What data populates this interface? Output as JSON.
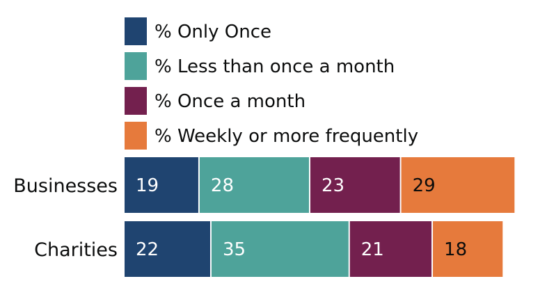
{
  "chart_data": {
    "type": "bar",
    "orientation": "horizontal",
    "stacked": true,
    "categories": [
      "Businesses",
      "Charities"
    ],
    "series": [
      {
        "name": "% Only Once",
        "color": "#1f4470",
        "label_color": "#ffffff",
        "values": [
          19,
          22
        ]
      },
      {
        "name": "% Less than once a month",
        "color": "#4ea39a",
        "label_color": "#ffffff",
        "values": [
          28,
          35
        ]
      },
      {
        "name": "% Once a month",
        "color": "#73204e",
        "label_color": "#ffffff",
        "values": [
          23,
          21
        ]
      },
      {
        "name": "% Weekly or more frequently",
        "color": "#e67a3c",
        "label_color": "#0b0c0c",
        "values": [
          29,
          18
        ]
      }
    ],
    "xlim": [
      0,
      100
    ],
    "grid": false,
    "legend_position": "top"
  }
}
